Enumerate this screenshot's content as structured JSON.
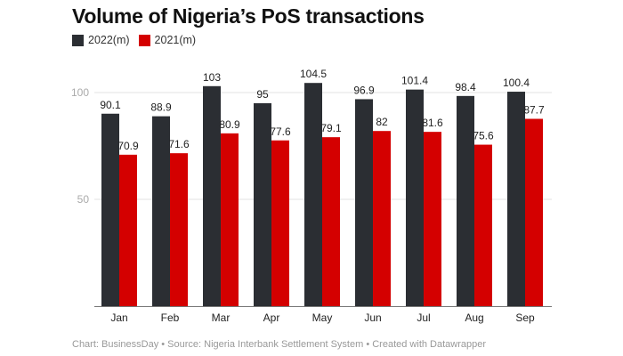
{
  "chart_data": {
    "type": "bar",
    "title": "Volume of Nigeria’s PoS transactions",
    "categories": [
      "Jan",
      "Feb",
      "Mar",
      "Apr",
      "May",
      "Jun",
      "Jul",
      "Aug",
      "Sep"
    ],
    "series": [
      {
        "name": "2022(m)",
        "color": "#2b2e33",
        "values": [
          90.1,
          88.9,
          103,
          95,
          104.5,
          96.9,
          101.4,
          98.4,
          100.4
        ]
      },
      {
        "name": "2021(m)",
        "color": "#d40000",
        "values": [
          70.9,
          71.6,
          80.9,
          77.6,
          79.1,
          82,
          81.6,
          75.6,
          87.7
        ]
      }
    ],
    "yticks": [
      50,
      100
    ],
    "ylim": [
      0,
      110
    ],
    "grid": true,
    "legend": "top-left"
  },
  "footer": "Chart: BusinessDay • Source: Nigeria Interbank Settlement System • Created with Datawrapper"
}
